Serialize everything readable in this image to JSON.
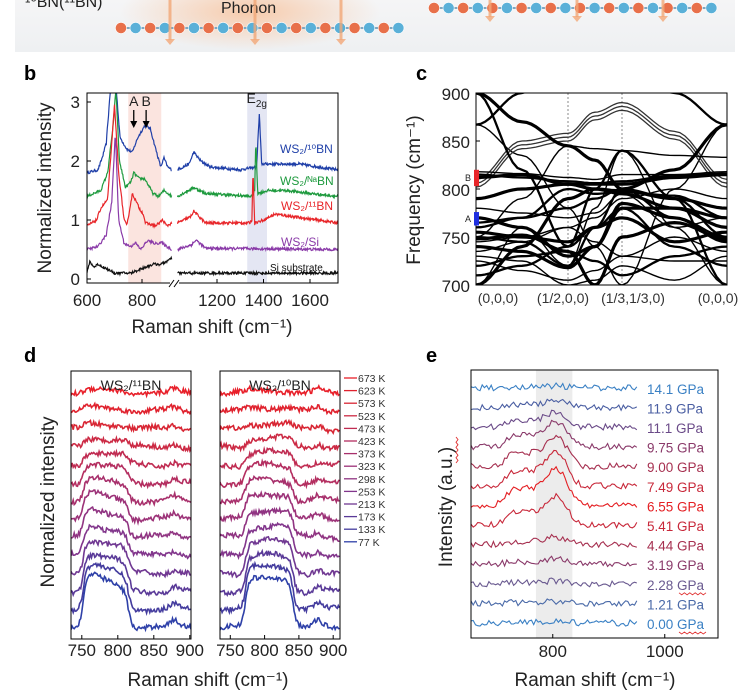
{
  "figure": {
    "panel_labels": {
      "b": "b",
      "c": "c",
      "d": "d",
      "e": "e"
    },
    "top": {
      "isotope_label": "¹⁰BN(¹¹BN)",
      "phonon_label": "Phonon"
    }
  },
  "colors": {
    "atom_orange": "#e8704a",
    "atom_blue": "#5ab0d8",
    "phonon_glow": "#f7c6a3",
    "arrow": "#f2a878"
  },
  "chart_data": [
    {
      "panel": "b",
      "type": "line",
      "xlabel": "Raman shift (cm⁻¹)",
      "ylabel": "Normalized intensity",
      "ylim": [
        0,
        3
      ],
      "axis_break": true,
      "xticks": [
        600,
        800,
        1200,
        1400,
        1600
      ],
      "yticks": [
        0,
        1,
        2,
        3
      ],
      "highlight_bands": [
        {
          "range": [
            750,
            870
          ],
          "color": "#fbe4df"
        },
        {
          "range": [
            1330,
            1415
          ],
          "color": "#e4e6f3"
        }
      ],
      "annotations": [
        {
          "text": "A",
          "x": 770
        },
        {
          "text": "B",
          "x": 815
        },
        {
          "text": "E",
          "sub": "2g",
          "x": 1370
        }
      ],
      "series": [
        {
          "name": "WS₂/¹⁰BN",
          "color": "#1f3fa8",
          "points": [
            [
              600,
              1.8
            ],
            [
              640,
              1.85
            ],
            [
              655,
              2.05
            ],
            [
              670,
              2.3
            ],
            [
              685,
              3.2
            ],
            [
              705,
              3.3
            ],
            [
              720,
              2.4
            ],
            [
              745,
              2.2
            ],
            [
              765,
              2.15
            ],
            [
              785,
              2.4
            ],
            [
              810,
              2.6
            ],
            [
              830,
              2.55
            ],
            [
              850,
              2.2
            ],
            [
              868,
              1.9
            ],
            [
              880,
              2.05
            ],
            [
              893,
              1.9
            ],
            [
              909,
              1.85
            ],
            [
              1030,
              1.85
            ],
            [
              1080,
              1.95
            ],
            [
              1100,
              2.15
            ],
            [
              1130,
              2.0
            ],
            [
              1170,
              1.9
            ],
            [
              1300,
              1.85
            ],
            [
              1370,
              1.9
            ],
            [
              1382,
              2.8
            ],
            [
              1392,
              1.95
            ],
            [
              1420,
              1.95
            ],
            [
              1550,
              1.95
            ],
            [
              1720,
              1.85
            ]
          ]
        },
        {
          "name": "WS₂/ᴺᵃBN",
          "color": "#1e9a3e",
          "points": [
            [
              600,
              1.4
            ],
            [
              650,
              1.5
            ],
            [
              675,
              1.8
            ],
            [
              695,
              2.6
            ],
            [
              705,
              3.2
            ],
            [
              718,
              2.0
            ],
            [
              740,
              1.55
            ],
            [
              760,
              1.65
            ],
            [
              770,
              1.8
            ],
            [
              790,
              1.7
            ],
            [
              810,
              1.7
            ],
            [
              840,
              1.45
            ],
            [
              860,
              1.4
            ],
            [
              880,
              1.5
            ],
            [
              909,
              1.4
            ],
            [
              1030,
              1.4
            ],
            [
              1100,
              1.55
            ],
            [
              1150,
              1.45
            ],
            [
              1350,
              1.4
            ],
            [
              1362,
              1.5
            ],
            [
              1367,
              2.35
            ],
            [
              1375,
              1.45
            ],
            [
              1420,
              1.5
            ],
            [
              1500,
              1.5
            ],
            [
              1600,
              1.45
            ],
            [
              1720,
              1.4
            ]
          ]
        },
        {
          "name": "WS₂/¹¹BN",
          "color": "#e8262a",
          "points": [
            [
              600,
              0.9
            ],
            [
              635,
              1.0
            ],
            [
              650,
              1.2
            ],
            [
              675,
              1.35
            ],
            [
              700,
              2.95
            ],
            [
              715,
              1.8
            ],
            [
              735,
              1.0
            ],
            [
              745,
              0.9
            ],
            [
              765,
              1.45
            ],
            [
              790,
              1.2
            ],
            [
              805,
              1.1
            ],
            [
              812,
              0.95
            ],
            [
              850,
              0.9
            ],
            [
              875,
              1.0
            ],
            [
              890,
              0.9
            ],
            [
              909,
              0.95
            ],
            [
              1030,
              0.95
            ],
            [
              1085,
              1.05
            ],
            [
              1100,
              1.15
            ],
            [
              1150,
              0.95
            ],
            [
              1340,
              0.95
            ],
            [
              1350,
              1.0
            ],
            [
              1355,
              1.85
            ],
            [
              1362,
              0.95
            ],
            [
              1400,
              1.0
            ],
            [
              1450,
              1.1
            ],
            [
              1720,
              0.95
            ]
          ]
        },
        {
          "name": "WS₂/Si",
          "color": "#8a3aa8",
          "points": [
            [
              600,
              0.5
            ],
            [
              640,
              0.55
            ],
            [
              670,
              0.75
            ],
            [
              690,
              1.3
            ],
            [
              703,
              2.5
            ],
            [
              715,
              1.0
            ],
            [
              735,
              0.6
            ],
            [
              760,
              0.55
            ],
            [
              775,
              0.62
            ],
            [
              795,
              0.5
            ],
            [
              820,
              0.65
            ],
            [
              850,
              0.6
            ],
            [
              870,
              0.62
            ],
            [
              890,
              0.55
            ],
            [
              909,
              0.5
            ],
            [
              1030,
              0.5
            ],
            [
              1090,
              0.58
            ],
            [
              1110,
              0.66
            ],
            [
              1150,
              0.52
            ],
            [
              1720,
              0.5
            ]
          ]
        },
        {
          "name": "Si substrate",
          "color": "#111111",
          "points": [
            [
              600,
              0.1
            ],
            [
              610,
              0.3
            ],
            [
              625,
              0.2
            ],
            [
              640,
              0.25
            ],
            [
              660,
              0.2
            ],
            [
              680,
              0.15
            ],
            [
              700,
              0.1
            ],
            [
              760,
              0.1
            ],
            [
              800,
              0.18
            ],
            [
              840,
              0.25
            ],
            [
              870,
              0.25
            ],
            [
              909,
              0.35
            ],
            [
              1030,
              0.1
            ],
            [
              1720,
              0.1
            ]
          ]
        }
      ]
    },
    {
      "panel": "c",
      "type": "line",
      "ylabel": "Frequency (cm⁻¹)",
      "ylim": [
        700,
        900
      ],
      "yticks": [
        700,
        750,
        800,
        850,
        900
      ],
      "kpath_labels": [
        "(0,0,0)",
        "(1/2,0,0)",
        "(1/3,1/3,0)",
        "(0,0,0)"
      ],
      "markers": [
        {
          "label": "A",
          "range": [
            762,
            776
          ],
          "color": "#1f2fe0"
        },
        {
          "label": "B",
          "range": [
            803,
            820
          ],
          "color": "#e8262a"
        }
      ],
      "bands": [
        [
          867,
          835,
          780,
          740,
          700,
          800,
          867
        ],
        [
          867,
          900,
          950,
          950,
          930,
          900,
          867
        ],
        [
          810,
          850,
          858,
          880,
          890,
          860,
          810
        ],
        [
          806,
          846,
          854,
          876,
          886,
          856,
          806
        ],
        [
          802,
          842,
          850,
          872,
          882,
          852,
          802
        ],
        [
          812,
          815,
          805,
          805,
          805,
          812,
          815
        ],
        [
          818,
          816,
          812,
          810,
          815,
          815,
          818
        ],
        [
          815,
          812,
          808,
          806,
          808,
          814,
          816
        ],
        [
          770,
          760,
          730,
          740,
          780,
          780,
          770
        ],
        [
          750,
          790,
          845,
          842,
          840,
          835,
          833
        ],
        [
          750,
          745,
          720,
          760,
          800,
          790,
          750
        ],
        [
          740,
          735,
          718,
          740,
          785,
          770,
          745
        ],
        [
          700,
          760,
          720,
          780,
          840,
          760,
          700
        ],
        [
          900,
          820,
          740,
          800,
          840,
          790,
          700
        ],
        [
          700,
          740,
          790,
          800,
          795,
          780,
          760
        ],
        [
          730,
          725,
          700,
          705,
          720,
          705,
          730
        ],
        [
          760,
          770,
          780,
          790,
          800,
          770,
          750
        ],
        [
          755,
          750,
          745,
          760,
          770,
          745,
          755
        ],
        [
          780,
          775,
          770,
          775,
          795,
          760,
          770
        ],
        [
          720,
          730,
          735,
          725,
          710,
          730,
          740
        ],
        [
          900,
          870,
          845,
          830,
          800,
          820,
          867
        ],
        [
          745,
          750,
          760,
          770,
          790,
          800,
          790
        ],
        [
          710,
          720,
          740,
          760,
          780,
          740,
          720
        ],
        [
          790,
          800,
          805,
          800,
          798,
          790,
          780
        ],
        [
          725,
          715,
          705,
          715,
          730,
          725,
          725
        ],
        [
          765,
          770,
          800,
          795,
          797,
          793,
          770
        ],
        [
          748,
          752,
          735,
          700,
          750,
          765,
          748
        ],
        [
          735,
          745,
          760,
          745,
          730,
          750,
          735
        ]
      ]
    },
    {
      "panel": "d",
      "type": "line",
      "ylabel": "Normalized intensity",
      "xlabel": "Raman shift (cm⁻¹)",
      "subplots": [
        {
          "title": "WS₂/¹¹BN",
          "xlim": [
            735,
            902
          ],
          "xticks": [
            750,
            800,
            850,
            900
          ],
          "peak_range": [
            752,
            815
          ]
        },
        {
          "title": "WS₂/¹⁰BN",
          "xlim": [
            735,
            910
          ],
          "xticks": [
            750,
            800,
            850,
            900
          ],
          "peak_range": [
            772,
            842
          ]
        }
      ],
      "temperatures": [
        "673 K",
        "623 K",
        "573 K",
        "523 K",
        "473 K",
        "423 K",
        "373 K",
        "323 K",
        "298 K",
        "253 K",
        "213 K",
        "173 K",
        "133 K",
        "77 K"
      ],
      "colors": [
        "#e8202a",
        "#e0222e",
        "#d82634",
        "#cc2a44",
        "#c02c52",
        "#b42e60",
        "#a8306c",
        "#9c3278",
        "#903482",
        "#82368c",
        "#703892",
        "#5a3a98",
        "#443c9e",
        "#2e40a8"
      ],
      "relative_peak_amplitude": [
        0.15,
        0.2,
        0.3,
        0.5,
        0.7,
        1.0,
        1.2,
        1.4,
        1.5,
        1.6,
        1.8,
        2.0,
        2.4,
        2.8
      ]
    },
    {
      "panel": "e",
      "type": "line",
      "ylabel": "Intensity (a.u.)",
      "xlabel": "Raman shift (cm⁻¹)",
      "xlim": [
        654,
        1095
      ],
      "xticks": [
        800,
        1000
      ],
      "highlight_band": [
        770,
        835
      ],
      "pressures": [
        "14.1 GPa",
        "11.9 GPa",
        "11.1 GPa",
        "9.75 GPa",
        "9.00 GPa",
        "7.49 GPa",
        "6.55 GPa",
        "5.41 GPa",
        "4.44 GPa",
        "3.19 GPa",
        "2.28 GPa",
        "1.21 GPa",
        "0.00 GPa"
      ],
      "colors": [
        "#3a80c4",
        "#4a5ea2",
        "#6a4a88",
        "#8a3a6a",
        "#a63050",
        "#c8283a",
        "#e41e22",
        "#c8283a",
        "#a63050",
        "#8a3a6a",
        "#6a5a90",
        "#4a6aa8",
        "#3a80c4"
      ],
      "relative_peak_amplitude": [
        0.1,
        0.35,
        0.8,
        1.3,
        1.6,
        1.8,
        2.0,
        1.5,
        0.4,
        0.3,
        0.15,
        0.1,
        0.1
      ]
    }
  ]
}
